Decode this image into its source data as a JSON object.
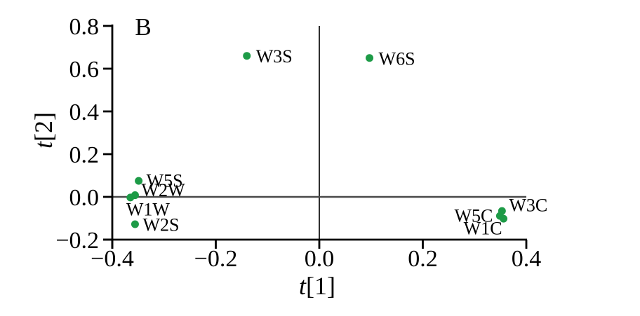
{
  "chart_data": {
    "type": "scatter",
    "panel_label": "B",
    "xlabel": "t[1]",
    "ylabel": "t[2]",
    "xlim": [
      -0.4,
      0.4
    ],
    "ylim": [
      -0.2,
      0.8
    ],
    "grid": false,
    "zero_lines": true,
    "legend": "none",
    "marker_color": "#1d9b47",
    "axis_color": "#000000",
    "zero_line_color": "#4a4a4a",
    "x_ticks": [
      {
        "value": -0.4,
        "label": "−0.4"
      },
      {
        "value": -0.2,
        "label": "−0.2"
      },
      {
        "value": 0.0,
        "label": "0.0"
      },
      {
        "value": 0.2,
        "label": "0.2"
      },
      {
        "value": 0.4,
        "label": "0.4"
      }
    ],
    "y_ticks": [
      {
        "value": 0.8,
        "label": "0.8"
      },
      {
        "value": 0.6,
        "label": "0.6"
      },
      {
        "value": 0.4,
        "label": "0.4"
      },
      {
        "value": 0.2,
        "label": "0.2"
      },
      {
        "value": 0.0,
        "label": "0.0"
      },
      {
        "value": -0.2,
        "label": "−0.2"
      }
    ],
    "points": [
      {
        "label": "W3S",
        "x": -0.14,
        "y": 0.66
      },
      {
        "label": "W6S",
        "x": 0.097,
        "y": 0.65
      },
      {
        "label": "W5S",
        "x": -0.349,
        "y": 0.075
      },
      {
        "label": "W2W",
        "x": -0.356,
        "y": 0.008
      },
      {
        "label": "W1W",
        "x": -0.365,
        "y": -0.003
      },
      {
        "label": "W2S",
        "x": -0.356,
        "y": -0.128
      },
      {
        "label": "W3C",
        "x": 0.353,
        "y": -0.066
      },
      {
        "label": "W5C",
        "x": 0.349,
        "y": -0.089
      },
      {
        "label": "W1C",
        "x": 0.356,
        "y": -0.102
      }
    ]
  }
}
